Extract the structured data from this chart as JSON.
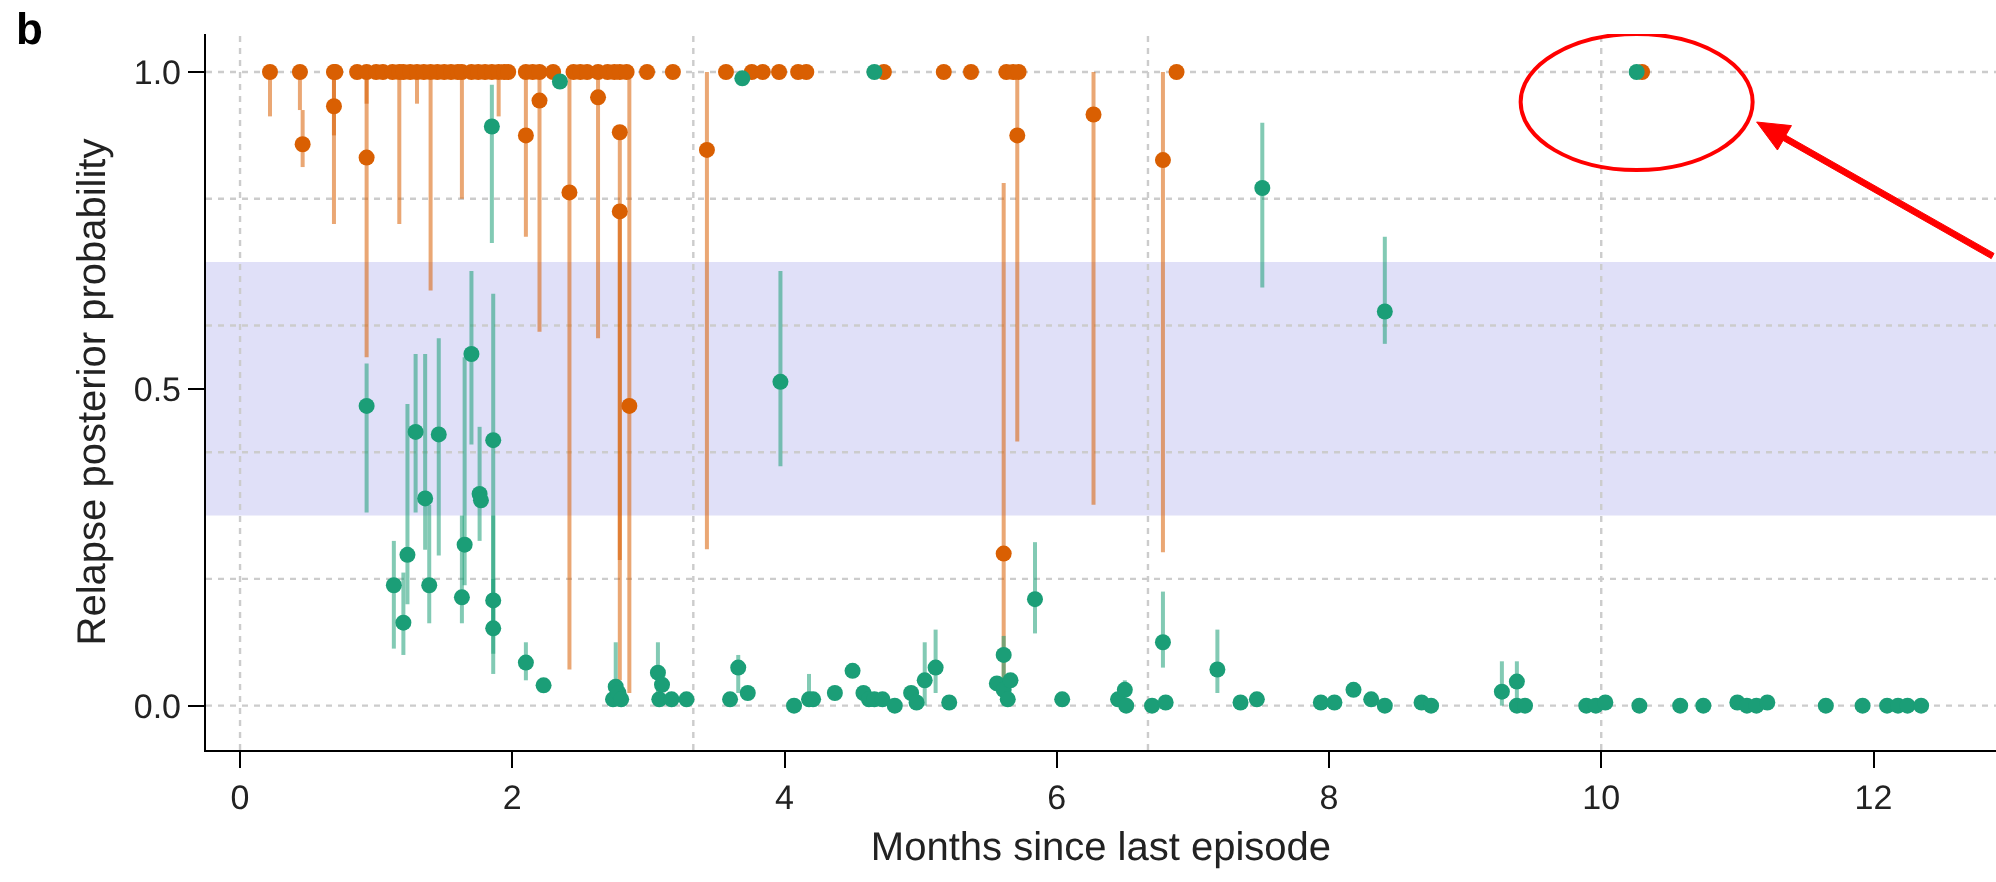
{
  "chart_data": {
    "type": "scatter",
    "title": "b",
    "xlabel": "Months since last episode",
    "ylabel": "Relapse posterior probability",
    "xlim": [
      -0.25,
      12.9
    ],
    "ylim": [
      -0.07,
      1.06
    ],
    "xticks": [
      0,
      2,
      4,
      6,
      8,
      10,
      12
    ],
    "yticks": [
      {
        "value": 0,
        "label": "0.0"
      },
      {
        "value": 0.5,
        "label": "0.5"
      },
      {
        "value": 1,
        "label": "1.0"
      }
    ],
    "grid": false,
    "marker": "circle",
    "bands": [
      {
        "axis": "y",
        "from": 0.3,
        "to": 0.7,
        "color": "#e0e0f8"
      }
    ],
    "ref_lines": [
      {
        "axis": "y",
        "value": 0,
        "color": "#cccccc",
        "line_style": "dotted"
      },
      {
        "axis": "y",
        "value": 0.2,
        "color": "#cccccc",
        "line_style": "dotted"
      },
      {
        "axis": "y",
        "value": 0.4,
        "color": "#cccccc",
        "line_style": "dotted"
      },
      {
        "axis": "y",
        "value": 0.6,
        "color": "#cccccc",
        "line_style": "dotted"
      },
      {
        "axis": "y",
        "value": 0.8,
        "color": "#cccccc",
        "line_style": "dotted"
      },
      {
        "axis": "y",
        "value": 1.0,
        "color": "#cccccc",
        "line_style": "dotted"
      },
      {
        "axis": "x",
        "value": 0,
        "color": "#cccccc",
        "line_style": "dotted"
      },
      {
        "axis": "x",
        "value": 3.33,
        "color": "#cccccc",
        "line_style": "dotted"
      },
      {
        "axis": "x",
        "value": 6.67,
        "color": "#cccccc",
        "line_style": "dotted"
      },
      {
        "axis": "x",
        "value": 10,
        "color": "#cccccc",
        "line_style": "dotted"
      }
    ],
    "series": [
      {
        "color": "#d95f02",
        "x": [
          0.22,
          0.44,
          0.46,
          0.69,
          0.69,
          0.7,
          0.86,
          0.93,
          0.93,
          1.0,
          1.05,
          1.12,
          1.17,
          1.2,
          1.25,
          1.3,
          1.35,
          1.4,
          1.45,
          1.5,
          1.55,
          1.6,
          1.63,
          1.7,
          1.75,
          1.8,
          1.85,
          1.9,
          1.94,
          1.97,
          2.1,
          2.1,
          2.15,
          2.2,
          2.2,
          2.3,
          2.42,
          2.45,
          2.5,
          2.55,
          2.63,
          2.63,
          2.7,
          2.75,
          2.79,
          2.79,
          2.79,
          2.84,
          2.86,
          2.99,
          3.18,
          3.43,
          3.57,
          3.76,
          3.84,
          3.96,
          4.1,
          4.16,
          4.73,
          5.17,
          5.37,
          5.61,
          5.63,
          5.68,
          5.71,
          5.72,
          6.27,
          6.78,
          6.88,
          10.3
        ],
        "values": [
          1.0,
          1.0,
          0.886,
          1.0,
          0.946,
          1.0,
          1.0,
          1.0,
          0.865,
          1.0,
          1.0,
          1.0,
          1.0,
          1.0,
          1.0,
          1.0,
          1.0,
          1.0,
          1.0,
          1.0,
          1.0,
          1.0,
          1.0,
          1.0,
          1.0,
          1.0,
          1.0,
          1.0,
          1.0,
          1.0,
          1.0,
          0.9,
          1.0,
          1.0,
          0.955,
          1.0,
          0.81,
          1.0,
          1.0,
          1.0,
          1.0,
          0.96,
          1.0,
          1.0,
          1.0,
          0.905,
          0.78,
          1.0,
          0.473,
          1.0,
          1.0,
          0.877,
          1.0,
          1.0,
          1.0,
          1.0,
          1.0,
          1.0,
          1.0,
          1.0,
          1.0,
          0.24,
          1.0,
          1.0,
          0.9,
          1.0,
          0.933,
          0.861,
          1.0,
          1.0
        ],
        "errors": [
          [
            0.93,
            1.0
          ],
          [
            0.94,
            1.0
          ],
          [
            0.85,
            0.94
          ],
          [
            0.76,
            1.0
          ],
          [
            0.9,
            1.0
          ],
          null,
          null,
          [
            0.95,
            1.0
          ],
          [
            0.55,
            1.0
          ],
          null,
          null,
          null,
          [
            0.76,
            1.0
          ],
          null,
          null,
          [
            0.95,
            1.0
          ],
          null,
          [
            0.655,
            1.0
          ],
          null,
          null,
          null,
          null,
          [
            0.8,
            1.0
          ],
          null,
          null,
          null,
          null,
          [
            0.93,
            1.0
          ],
          null,
          null,
          null,
          [
            0.74,
            1.0
          ],
          null,
          null,
          [
            0.59,
            1.0
          ],
          null,
          [
            0.057,
            1.0
          ],
          null,
          null,
          null,
          null,
          [
            0.58,
            1.0
          ],
          null,
          null,
          null,
          [
            0.23,
            0.905
          ],
          [
            0.04,
            0.78
          ],
          null,
          [
            0.02,
            1.0
          ],
          null,
          null,
          [
            0.247,
            1.0
          ],
          null,
          null,
          null,
          null,
          null,
          null,
          null,
          null,
          null,
          [
            0.01,
            0.825
          ],
          null,
          null,
          [
            0.417,
            1.0
          ],
          null,
          [
            0.317,
            1.0
          ],
          [
            0.242,
            1.0
          ],
          null,
          null
        ]
      },
      {
        "color": "#1b9e77",
        "x": [
          0.93,
          1.13,
          1.2,
          1.23,
          1.29,
          1.36,
          1.39,
          1.46,
          1.63,
          1.65,
          1.7,
          1.76,
          1.77,
          1.85,
          1.86,
          1.86,
          1.86,
          2.1,
          2.23,
          2.35,
          2.74,
          2.76,
          2.78,
          2.8,
          3.07,
          3.08,
          3.1,
          3.17,
          3.28,
          3.6,
          3.66,
          3.69,
          3.73,
          3.97,
          4.07,
          4.18,
          4.21,
          4.37,
          4.5,
          4.58,
          4.62,
          4.66,
          4.66,
          4.72,
          4.81,
          4.93,
          4.97,
          5.03,
          5.11,
          5.21,
          5.56,
          5.61,
          5.61,
          5.64,
          5.66,
          5.84,
          6.04,
          6.45,
          6.5,
          6.51,
          6.7,
          6.78,
          6.8,
          7.18,
          7.35,
          7.47,
          7.51,
          7.94,
          8.04,
          8.18,
          8.31,
          8.41,
          8.41,
          8.68,
          8.75,
          9.27,
          9.38,
          9.38,
          9.44,
          9.89,
          9.96,
          10.03,
          10.26,
          10.28,
          10.58,
          10.75,
          11.0,
          11.07,
          11.14,
          11.22,
          11.65,
          11.92,
          12.1,
          12.18,
          12.25,
          12.35
        ],
        "values": [
          0.473,
          0.19,
          0.131,
          0.238,
          0.432,
          0.327,
          0.19,
          0.428,
          0.171,
          0.254,
          0.555,
          0.334,
          0.324,
          0.914,
          0.419,
          0.166,
          0.122,
          0.068,
          0.032,
          0.985,
          0.01,
          0.03,
          0.02,
          0.01,
          0.052,
          0.01,
          0.033,
          0.01,
          0.01,
          0.01,
          0.06,
          0.99,
          0.02,
          0.511,
          0.0,
          0.01,
          0.01,
          0.02,
          0.055,
          0.02,
          0.01,
          1.0,
          0.01,
          0.01,
          0.0,
          0.02,
          0.005,
          0.04,
          0.06,
          0.005,
          0.035,
          0.08,
          0.025,
          0.01,
          0.04,
          0.168,
          0.01,
          0.01,
          0.025,
          0.0,
          0.0,
          0.1,
          0.005,
          0.057,
          0.005,
          0.01,
          0.817,
          0.005,
          0.005,
          0.025,
          0.01,
          0.0,
          0.622,
          0.005,
          0.0,
          0.022,
          0.038,
          0.0,
          0.0,
          0.0,
          0.0,
          0.005,
          1.0,
          0.0,
          0.0,
          0.0,
          0.005,
          0.0,
          0.0,
          0.005,
          0.0,
          0.0,
          0.0,
          0.0,
          0.0,
          0.0
        ],
        "errors": [
          [
            0.305,
            0.54
          ],
          [
            0.09,
            0.26
          ],
          [
            0.08,
            0.21
          ],
          [
            0.16,
            0.476
          ],
          [
            0.305,
            0.555
          ],
          [
            0.246,
            0.555
          ],
          [
            0.13,
            0.317
          ],
          [
            0.237,
            0.58
          ],
          [
            0.13,
            0.3
          ],
          [
            0.19,
            0.55
          ],
          [
            0.412,
            0.686
          ],
          [
            0.26,
            0.44
          ],
          null,
          [
            0.73,
            0.98
          ],
          [
            0.082,
            0.65
          ],
          [
            0.12,
            0.3
          ],
          [
            0.05,
            0.2
          ],
          [
            0.04,
            0.1
          ],
          null,
          null,
          null,
          [
            0.0,
            0.1
          ],
          null,
          null,
          [
            0.0,
            0.1
          ],
          null,
          null,
          null,
          null,
          null,
          [
            0.02,
            0.08
          ],
          null,
          null,
          [
            0.378,
            0.686
          ],
          null,
          [
            0.0,
            0.05
          ],
          null,
          null,
          null,
          null,
          null,
          null,
          null,
          null,
          null,
          null,
          null,
          [
            0.0,
            0.1
          ],
          [
            0.02,
            0.12
          ],
          null,
          null,
          [
            0.0,
            0.11
          ],
          null,
          null,
          null,
          [
            0.114,
            0.258
          ],
          null,
          null,
          [
            0.0,
            0.04
          ],
          null,
          null,
          [
            0.06,
            0.18
          ],
          null,
          [
            0.02,
            0.12
          ],
          null,
          null,
          [
            0.66,
            0.92
          ],
          null,
          null,
          null,
          null,
          null,
          [
            0.571,
            0.74
          ],
          null,
          null,
          [
            0.0,
            0.07
          ],
          [
            0.0,
            0.07
          ],
          null,
          null,
          null,
          null,
          null,
          null,
          null,
          null,
          null,
          null,
          null,
          null,
          null,
          null,
          null,
          null,
          null,
          null,
          null
        ]
      }
    ]
  }
}
